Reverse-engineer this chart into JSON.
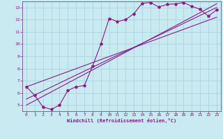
{
  "bg_color": "#c8eaf0",
  "grid_color": "#a8d0dc",
  "line_color": "#8b1a8b",
  "xlabel": "Windchill (Refroidissement éolien,°C)",
  "tick_color": "#8b1a8b",
  "xlim": [
    -0.5,
    23.5
  ],
  "ylim": [
    4.5,
    13.5
  ],
  "yticks": [
    5,
    6,
    7,
    8,
    9,
    10,
    11,
    12,
    13
  ],
  "xticks": [
    0,
    1,
    2,
    3,
    4,
    5,
    6,
    7,
    8,
    9,
    10,
    11,
    12,
    13,
    14,
    15,
    16,
    17,
    18,
    19,
    20,
    21,
    22,
    23
  ],
  "series1_x": [
    0,
    1,
    2,
    3,
    4,
    5,
    6,
    7,
    8,
    9,
    10,
    11,
    12,
    13,
    14,
    15,
    16,
    17,
    18,
    19,
    20,
    21,
    22,
    23
  ],
  "series1_y": [
    6.5,
    5.8,
    4.85,
    4.65,
    5.0,
    6.2,
    6.5,
    6.6,
    8.2,
    10.0,
    12.1,
    11.85,
    12.0,
    12.5,
    13.35,
    13.4,
    13.05,
    13.25,
    13.3,
    13.4,
    13.1,
    12.85,
    12.3,
    12.8
  ],
  "series2_x": [
    0,
    23
  ],
  "series2_y": [
    5.5,
    13.0
  ],
  "series3_x": [
    0,
    23
  ],
  "series3_y": [
    6.5,
    12.2
  ],
  "series4_x": [
    0,
    23
  ],
  "series4_y": [
    5.0,
    13.3
  ]
}
